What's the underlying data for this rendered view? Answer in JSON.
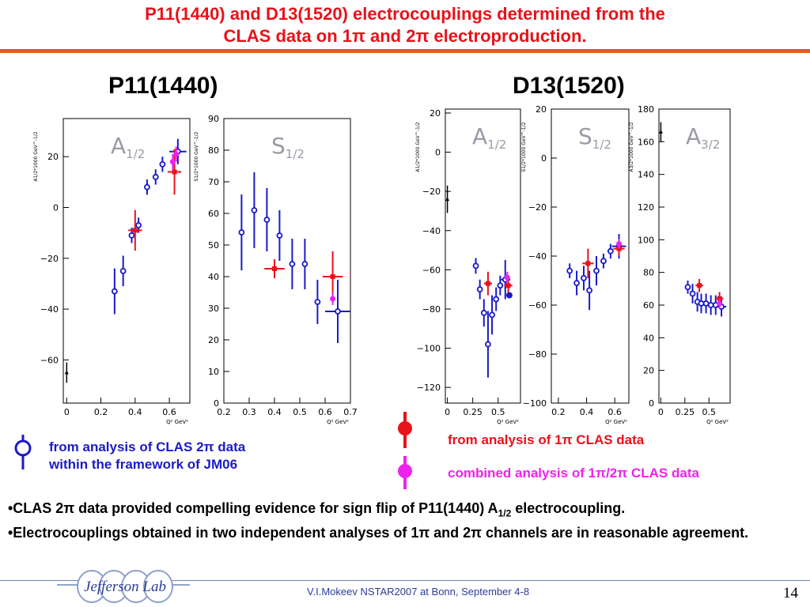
{
  "slide": {
    "title_line1": "P11(1440) and D13(1520) electrocouplings determined from the",
    "title_line2": "CLAS data on 1π and 2π electroproduction.",
    "footer": "V.I.Mokeev   NSTAR2007 at Bonn, September  4-8",
    "page_number": "14",
    "logo_text": "Jefferson Lab"
  },
  "colors": {
    "title": "#e8121a",
    "rule": "#e85a1a",
    "two_pi": "#1a1ac8",
    "one_pi": "#e8121a",
    "combined": "#ee22ee"
  },
  "groups": {
    "p11": "P11(1440)",
    "d13": "D13(1520)"
  },
  "legend": {
    "two_pi_line1": "from analysis of  CLAS 2π data",
    "two_pi_line2": "within the framework of JM06",
    "one_pi": "from analysis of 1π CLAS data",
    "combined": "combined  analysis of 1π/2π  CLAS data"
  },
  "bullets": {
    "b1_pre": "•CLAS 2π data provided compelling evidence for sign flip of P11(1440) A",
    "b1_sub": "1/2",
    "b1_post": " electrocoupling.",
    "b2": "•Electrocouplings obtained in two independent analyses of 1π and 2π channels are in reasonable agreement."
  },
  "chart_data": [
    {
      "type": "scatter",
      "group": "P11(1440)",
      "label_main": "A",
      "label_sub": "1/2",
      "ylabel": "A1/2*1000 GeV^-1/2",
      "xlabel": "Q² GeV²",
      "xlim": [
        -0.02,
        0.72
      ],
      "ylim": [
        -77,
        35
      ],
      "xticks": [
        0,
        0.2,
        0.4,
        0.6
      ],
      "xtick_labels": [
        "0",
        "0.2",
        "0.4",
        "0.6"
      ],
      "yticks": [
        -60,
        -40,
        -20,
        0,
        20
      ],
      "series": [
        {
          "kind": "two_pi",
          "points": [
            {
              "x": 0.28,
              "y": -33,
              "ey": 9
            },
            {
              "x": 0.33,
              "y": -25,
              "ey": 6
            },
            {
              "x": 0.38,
              "y": -11,
              "ey": 3
            },
            {
              "x": 0.42,
              "y": -7,
              "ey": 3
            },
            {
              "x": 0.47,
              "y": 8,
              "ey": 3
            },
            {
              "x": 0.52,
              "y": 12,
              "ey": 3
            },
            {
              "x": 0.56,
              "y": 17,
              "ey": 3
            },
            {
              "x": 0.65,
              "y": 22,
              "ey": 5,
              "ex": 0.05
            }
          ]
        },
        {
          "kind": "one_pi",
          "points": [
            {
              "x": 0.4,
              "y": -9,
              "ey": 8,
              "ex": 0.04
            },
            {
              "x": 0.63,
              "y": 14,
              "ey": 9,
              "ex": 0.04
            }
          ]
        },
        {
          "kind": "combined",
          "points": [
            {
              "x": 0.62,
              "y": 18,
              "ey": 3
            },
            {
              "x": 0.64,
              "y": 21,
              "ey": 3
            }
          ]
        },
        {
          "kind": "photon",
          "points": [
            {
              "x": 0,
              "y": -65,
              "ey": 4
            }
          ]
        }
      ]
    },
    {
      "type": "scatter",
      "group": "P11(1440)",
      "label_main": "S",
      "label_sub": "1/2",
      "ylabel": "S1/2*1000 GeV^-1/2",
      "xlabel": "Q² GeV²",
      "xlim": [
        0.2,
        0.7
      ],
      "ylim": [
        0,
        90
      ],
      "xticks": [
        0.2,
        0.3,
        0.4,
        0.5,
        0.6,
        0.7
      ],
      "xtick_labels": [
        "0.2",
        "0.3",
        "0.4",
        "0.5",
        "0.6",
        "0.7"
      ],
      "yticks": [
        0,
        10,
        20,
        30,
        40,
        50,
        60,
        70,
        80,
        90
      ],
      "series": [
        {
          "kind": "two_pi",
          "points": [
            {
              "x": 0.27,
              "y": 54,
              "ey": 12
            },
            {
              "x": 0.32,
              "y": 61,
              "ey": 12
            },
            {
              "x": 0.37,
              "y": 58,
              "ey": 10
            },
            {
              "x": 0.42,
              "y": 53,
              "ey": 8
            },
            {
              "x": 0.47,
              "y": 44,
              "ey": 8
            },
            {
              "x": 0.52,
              "y": 44,
              "ey": 8
            },
            {
              "x": 0.57,
              "y": 32,
              "ey": 7
            },
            {
              "x": 0.65,
              "y": 29,
              "ey": 10,
              "ex": 0.05
            }
          ]
        },
        {
          "kind": "one_pi",
          "points": [
            {
              "x": 0.4,
              "y": 42.5,
              "ey": 3,
              "ex": 0.04
            },
            {
              "x": 0.63,
              "y": 40,
              "ey": 8,
              "ex": 0.04
            }
          ]
        },
        {
          "kind": "combined",
          "points": [
            {
              "x": 0.63,
              "y": 33,
              "ey": 2
            }
          ]
        }
      ]
    },
    {
      "type": "scatter",
      "group": "D13(1520)",
      "label_main": "A",
      "label_sub": "1/2",
      "ylabel": "A1/2*1000 GeV^-1/2",
      "xlabel": "Q² GeV²",
      "xlim": [
        -0.02,
        0.72
      ],
      "ylim": [
        -128,
        22
      ],
      "xticks": [
        0,
        0.25,
        0.5
      ],
      "xtick_labels": [
        "0",
        "0.25",
        "0.5"
      ],
      "yticks": [
        -120,
        -100,
        -80,
        -60,
        -40,
        -20,
        0,
        20
      ],
      "series": [
        {
          "kind": "two_pi",
          "points": [
            {
              "x": 0.28,
              "y": -58,
              "ey": 4
            },
            {
              "x": 0.32,
              "y": -70,
              "ey": 5
            },
            {
              "x": 0.36,
              "y": -82,
              "ey": 7
            },
            {
              "x": 0.4,
              "y": -98,
              "ey": 17
            },
            {
              "x": 0.44,
              "y": -83,
              "ey": 10
            },
            {
              "x": 0.48,
              "y": -75,
              "ey": 6
            },
            {
              "x": 0.52,
              "y": -68,
              "ey": 5
            },
            {
              "x": 0.57,
              "y": -65,
              "ey": 10,
              "ex": 0.05
            }
          ]
        },
        {
          "kind": "one_pi",
          "points": [
            {
              "x": 0.4,
              "y": -67,
              "ey": 6,
              "ex": 0.04
            },
            {
              "x": 0.6,
              "y": -68,
              "ey": 5,
              "ex": 0.04
            }
          ]
        },
        {
          "kind": "combined",
          "points": [
            {
              "x": 0.59,
              "y": -64,
              "ey": 3
            }
          ]
        },
        {
          "kind": "filled_blue",
          "points": [
            {
              "x": 0.61,
              "y": -73,
              "ey": 0
            }
          ]
        },
        {
          "kind": "photon",
          "points": [
            {
              "x": 0,
              "y": -24,
              "ey": 7
            }
          ]
        }
      ]
    },
    {
      "type": "scatter",
      "group": "D13(1520)",
      "label_main": "S",
      "label_sub": "1/2",
      "ylabel": "S1/2*1000 GeV^-1/2",
      "xlabel": "Q² GeV²",
      "xlim": [
        0.15,
        0.7
      ],
      "ylim": [
        -100,
        20
      ],
      "xticks": [
        0.2,
        0.4,
        0.6
      ],
      "xtick_labels": [
        "0.2",
        "0.4",
        "0.6"
      ],
      "yticks": [
        -100,
        -80,
        -60,
        -40,
        -20,
        0,
        20
      ],
      "series": [
        {
          "kind": "two_pi",
          "points": [
            {
              "x": 0.28,
              "y": -46,
              "ey": 3
            },
            {
              "x": 0.33,
              "y": -51,
              "ey": 5
            },
            {
              "x": 0.38,
              "y": -49,
              "ey": 5
            },
            {
              "x": 0.42,
              "y": -54,
              "ey": 8
            },
            {
              "x": 0.47,
              "y": -46,
              "ey": 6
            },
            {
              "x": 0.52,
              "y": -42,
              "ey": 3
            },
            {
              "x": 0.57,
              "y": -38,
              "ey": 3
            },
            {
              "x": 0.63,
              "y": -36,
              "ey": 5,
              "ex": 0.05
            }
          ]
        },
        {
          "kind": "one_pi",
          "points": [
            {
              "x": 0.41,
              "y": -43,
              "ey": 6,
              "ex": 0.04
            },
            {
              "x": 0.63,
              "y": -37,
              "ey": 3,
              "ex": 0.04
            }
          ]
        },
        {
          "kind": "combined",
          "points": [
            {
              "x": 0.63,
              "y": -35,
              "ey": 2
            }
          ]
        }
      ]
    },
    {
      "type": "scatter",
      "group": "D13(1520)",
      "label_main": "A",
      "label_sub": "3/2",
      "ylabel": "A3/2*1000 GeV^-1/2",
      "xlabel": "Q² GeV²",
      "xlim": [
        -0.02,
        0.72
      ],
      "ylim": [
        0,
        180
      ],
      "xticks": [
        0,
        0.25,
        0.5
      ],
      "xtick_labels": [
        "0",
        "0.25",
        "0.5"
      ],
      "yticks": [
        0,
        20,
        40,
        60,
        80,
        100,
        120,
        140,
        160,
        180
      ],
      "series": [
        {
          "kind": "two_pi",
          "points": [
            {
              "x": 0.28,
              "y": 71,
              "ey": 4
            },
            {
              "x": 0.33,
              "y": 67,
              "ey": 6
            },
            {
              "x": 0.38,
              "y": 62,
              "ey": 6
            },
            {
              "x": 0.42,
              "y": 61,
              "ey": 6
            },
            {
              "x": 0.47,
              "y": 61,
              "ey": 6
            },
            {
              "x": 0.52,
              "y": 60,
              "ey": 6
            },
            {
              "x": 0.57,
              "y": 60,
              "ey": 6
            },
            {
              "x": 0.63,
              "y": 59,
              "ey": 6,
              "ex": 0.05
            }
          ]
        },
        {
          "kind": "one_pi",
          "points": [
            {
              "x": 0.4,
              "y": 72,
              "ey": 4,
              "ex": 0.04
            },
            {
              "x": 0.61,
              "y": 64,
              "ey": 4,
              "ex": 0.04
            }
          ]
        },
        {
          "kind": "combined",
          "points": [
            {
              "x": 0.61,
              "y": 61,
              "ey": 3
            }
          ]
        },
        {
          "kind": "photon",
          "points": [
            {
              "x": 0,
              "y": 166,
              "ey": 6
            }
          ]
        }
      ]
    }
  ]
}
